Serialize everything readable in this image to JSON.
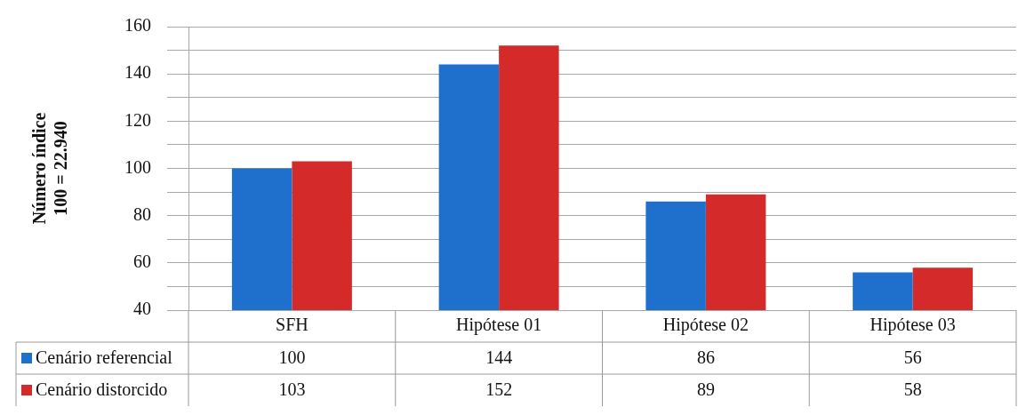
{
  "chart_data": {
    "type": "bar",
    "ylabel": "Número índice\n100 = 22.940",
    "categories": [
      "SFH",
      "Hipótese 01",
      "Hipótese 02",
      "Hipótese 03"
    ],
    "series": [
      {
        "name": "Cenário referencial",
        "color": "#1f6fcc",
        "values": [
          100,
          144,
          86,
          56
        ]
      },
      {
        "name": "Cenário distorcido",
        "color": "#d42a2a",
        "values": [
          103,
          152,
          89,
          58
        ]
      }
    ],
    "ylim": [
      40,
      160
    ],
    "yticks": [
      40,
      {
        "value": 50,
        "label": null
      },
      60,
      {
        "value": 70,
        "label": null
      },
      80,
      {
        "value": 90,
        "label": null
      },
      100,
      {
        "value": 110,
        "label": null
      },
      120,
      {
        "value": 130,
        "label": null
      },
      140,
      {
        "value": 150,
        "label": null
      },
      160
    ],
    "grid": "y",
    "legend": "bottom",
    "data_labels": true
  }
}
